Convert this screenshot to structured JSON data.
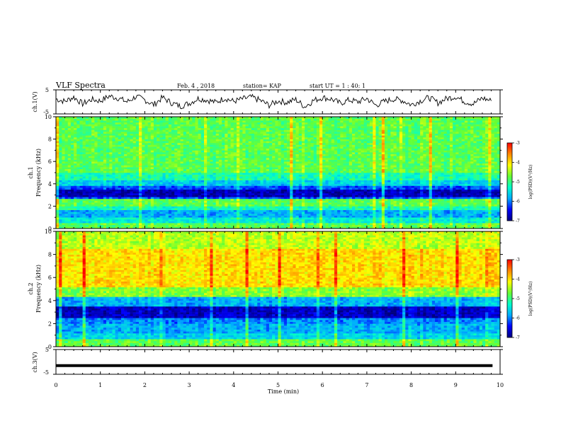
{
  "header": {
    "title": "VLF Spectra",
    "date": "Feb. 4 , 2018",
    "station": "station= KAP",
    "start_ut": "start UT =  1 : 40: 1"
  },
  "chart_data": [
    {
      "type": "line",
      "name": "ch1-voltage",
      "ylabel": "ch.1(V)",
      "ylim": [
        -5,
        5
      ],
      "yticks": [
        "5",
        "-5"
      ],
      "xlim": [
        0,
        10
      ],
      "x": [
        0,
        0.2,
        0.4,
        0.6,
        0.8,
        1.0,
        1.2,
        1.4,
        1.6,
        1.8,
        2.0,
        2.2,
        2.4,
        2.6,
        2.8,
        3.0,
        3.2,
        3.4,
        3.6,
        3.8,
        4.0,
        4.2,
        4.4,
        4.6,
        4.8,
        5.0,
        5.2,
        5.4,
        5.6,
        5.8,
        6.0,
        6.2,
        6.4,
        6.6,
        6.8,
        7.0,
        7.2,
        7.4,
        7.6,
        7.8,
        8.0,
        8.2,
        8.4,
        8.6,
        8.8,
        9.0,
        9.2,
        9.4,
        9.6,
        9.8
      ],
      "y": [
        1.2,
        0.2,
        2.0,
        -0.8,
        1.0,
        0.4,
        2.4,
        1.6,
        0.0,
        2.2,
        0.8,
        -1.2,
        1.8,
        -0.4,
        -1.8,
        -0.6,
        1.4,
        0.8,
        -0.2,
        1.6,
        0.2,
        1.2,
        2.0,
        0.6,
        -1.4,
        0.4,
        -0.2,
        1.0,
        -2.0,
        0.6,
        1.8,
        1.2,
        -0.6,
        0.8,
        0.0,
        1.4,
        -1.4,
        0.2,
        1.2,
        0.6,
        -1.2,
        0.4,
        1.8,
        -0.4,
        1.4,
        2.2,
        0.2,
        -0.8,
        1.6,
        0.4
      ]
    },
    {
      "type": "heatmap",
      "name": "ch1-spectrogram",
      "ylabel_line1": "ch.1",
      "ylabel_line2": "Frequency (kHz)",
      "ylim": [
        0,
        10
      ],
      "yticks": [
        "0",
        "2",
        "4",
        "6",
        "8",
        "10"
      ],
      "xlim": [
        0,
        10
      ],
      "colorbar": {
        "label": "log(PSD)(V²/Hz)",
        "range": [
          -7,
          -3
        ],
        "ticks": [
          "-3",
          "-4",
          "-5",
          "-6",
          "-7"
        ]
      },
      "bands_khz": [
        {
          "from": 0,
          "to": 0.5,
          "level": 0.55
        },
        {
          "from": 0.5,
          "to": 1.0,
          "level": 0.4
        },
        {
          "from": 1.0,
          "to": 1.7,
          "level": 0.3
        },
        {
          "from": 1.7,
          "to": 2.0,
          "level": 0.45
        },
        {
          "from": 2.0,
          "to": 2.6,
          "level": 0.55
        },
        {
          "from": 2.6,
          "to": 2.9,
          "level": 0.2
        },
        {
          "from": 2.9,
          "to": 3.5,
          "level": 0.06
        },
        {
          "from": 3.5,
          "to": 3.9,
          "level": 0.2
        },
        {
          "from": 3.9,
          "to": 4.4,
          "level": 0.35
        },
        {
          "from": 4.4,
          "to": 5.0,
          "level": 0.45
        },
        {
          "from": 5.0,
          "to": 10.0,
          "level": 0.55
        }
      ]
    },
    {
      "type": "heatmap",
      "name": "ch2-spectrogram",
      "ylabel_line1": "ch.2",
      "ylabel_line2": "Frequency (kHz)",
      "ylim": [
        0,
        10
      ],
      "yticks": [
        "0",
        "2",
        "4",
        "6",
        "8",
        "10"
      ],
      "xlim": [
        0,
        10
      ],
      "colorbar": {
        "label": "log(PSD)(V²/Hz)",
        "range": [
          -7,
          -3
        ],
        "ticks": [
          "-3",
          "-4",
          "-5",
          "-6",
          "-7"
        ]
      },
      "bands_khz": [
        {
          "from": 0,
          "to": 0.6,
          "level": 0.55
        },
        {
          "from": 0.6,
          "to": 1.2,
          "level": 0.35
        },
        {
          "from": 1.2,
          "to": 2.0,
          "level": 0.3
        },
        {
          "from": 2.0,
          "to": 2.5,
          "level": 0.25
        },
        {
          "from": 2.5,
          "to": 3.5,
          "level": 0.07
        },
        {
          "from": 3.5,
          "to": 4.3,
          "level": 0.3
        },
        {
          "from": 4.3,
          "to": 5.2,
          "level": 0.6
        },
        {
          "from": 5.2,
          "to": 8.5,
          "level": 0.75
        },
        {
          "from": 8.5,
          "to": 10.0,
          "level": 0.65
        }
      ]
    },
    {
      "type": "line",
      "name": "ch3-voltage",
      "ylabel": "ch.3(V)",
      "ylim": [
        -5,
        5
      ],
      "yticks": [
        "5",
        "-5"
      ],
      "xlim": [
        0,
        10
      ],
      "x": [
        0,
        9.83
      ],
      "y": [
        -1.5,
        -1.5
      ]
    }
  ],
  "xaxis": {
    "label": "Time (min)",
    "ticks": [
      "0",
      "1",
      "2",
      "3",
      "4",
      "5",
      "6",
      "7",
      "8",
      "9",
      "10"
    ]
  },
  "colors": {
    "colormap": [
      "#000080",
      "#0000ff",
      "#00aaff",
      "#00ffcc",
      "#66ff33",
      "#ffff00",
      "#ff8800",
      "#ff0000",
      "#ffffff"
    ],
    "line": "#000000"
  }
}
